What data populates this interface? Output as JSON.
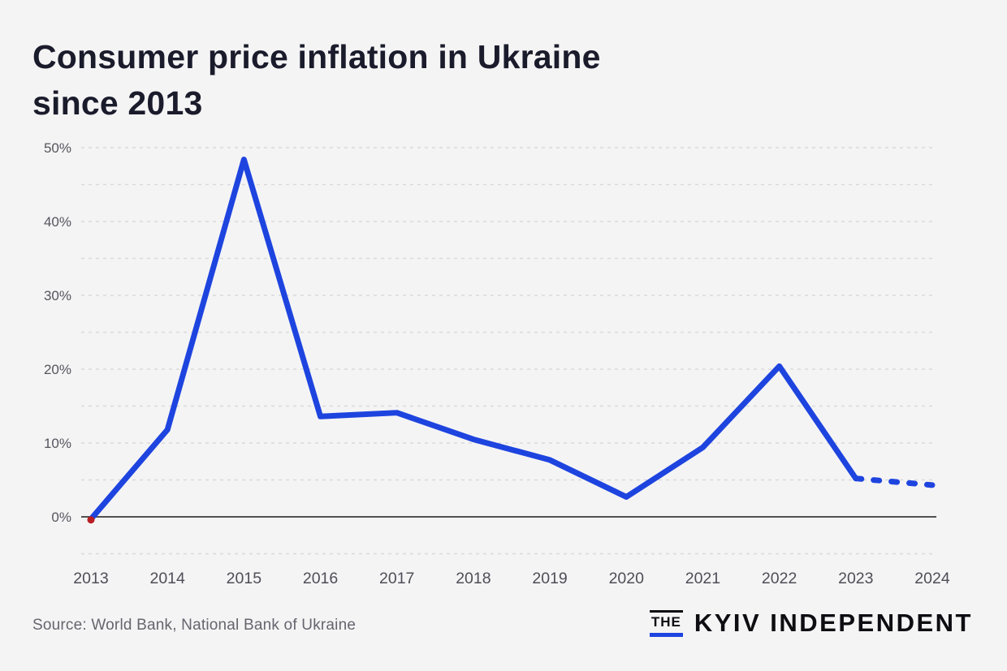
{
  "header": {
    "title": "Consumer price inflation in Ukraine since 2013",
    "title_lines": [
      "Consumer price inflation in Ukraine",
      "since 2013"
    ]
  },
  "chart_data": {
    "type": "line",
    "title": "Consumer price inflation in Ukraine since 2013",
    "categories": [
      "2013",
      "2014",
      "2015",
      "2016",
      "2017",
      "2018",
      "2019",
      "2020",
      "2021",
      "2022",
      "2023",
      "2024"
    ],
    "series": [
      {
        "name": "Consumer price inflation (%)",
        "values": [
          -0.3,
          11.8,
          48.4,
          13.6,
          14.1,
          10.5,
          7.7,
          2.7,
          9.4,
          20.4,
          5.2,
          4.3
        ]
      }
    ],
    "unit": "%",
    "projection_start_index": 10,
    "projection_note": "Segment from 2023 to 2024 drawn dashed (projection)",
    "start_marker": "red dot at 2013 data point",
    "y_ticks": [
      {
        "value": 0,
        "label": "0%"
      },
      {
        "value": 10,
        "label": "10%"
      },
      {
        "value": 20,
        "label": "20%"
      },
      {
        "value": 30,
        "label": "30%"
      },
      {
        "value": 40,
        "label": "40%"
      },
      {
        "value": 50,
        "label": "50%"
      }
    ],
    "ylim": [
      -5,
      50
    ],
    "grid": {
      "min": -5,
      "max": 50,
      "step": 5,
      "style": "dashed horizontal"
    },
    "xlabel": "",
    "ylabel": "",
    "legend": "none"
  },
  "colors": {
    "line": "#1e44df",
    "start_marker": "#b81e22",
    "gridline": "#d9d9dc",
    "zero_axis": "#1b1b1b",
    "background": "#f4f4f5",
    "logo_accent": "#1e44df"
  },
  "footer": {
    "source": "Source: World Bank, National Bank of Ukraine",
    "logo": {
      "the": "THE",
      "name": "KYIV INDEPENDENT"
    }
  }
}
